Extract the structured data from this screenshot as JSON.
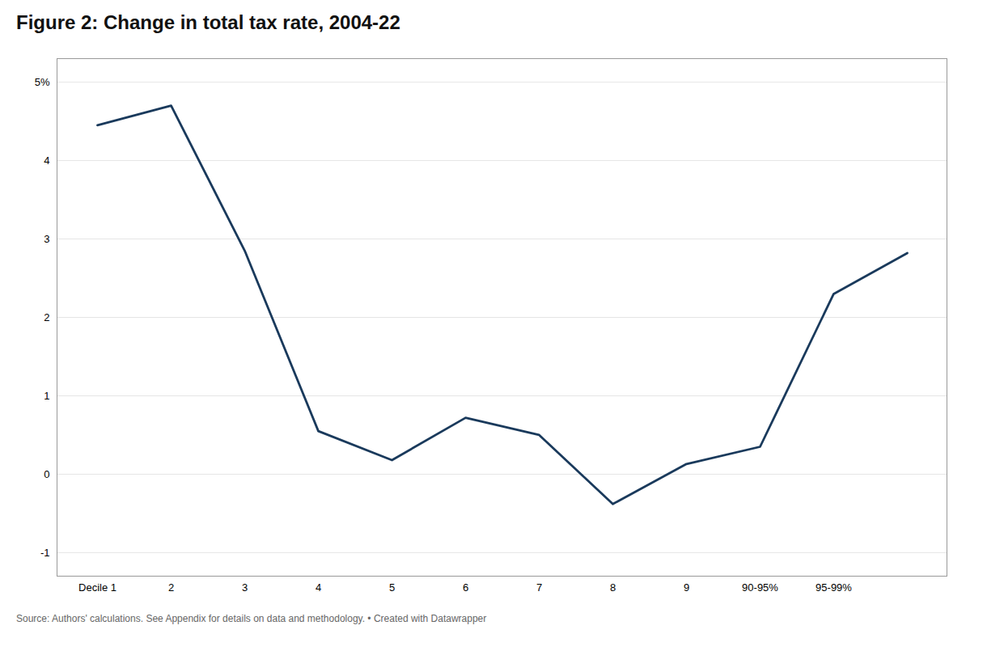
{
  "chart_data": {
    "type": "line",
    "title": "Figure 2: Change in total tax rate, 2004-22",
    "caption": "Source: Authors' calculations. See Appendix for details on data and methodology. • Created with Datawrapper",
    "categories": [
      "Decile 1",
      "2",
      "3",
      "4",
      "5",
      "6",
      "7",
      "8",
      "9",
      "90-95%",
      "95-99%",
      null
    ],
    "values": [
      4.45,
      4.7,
      2.85,
      0.55,
      0.18,
      0.72,
      0.5,
      -0.38,
      0.13,
      0.35,
      2.3,
      2.82
    ],
    "color": "#1a3a5c",
    "ylim": [
      -1.3,
      5.3
    ],
    "yticks": [
      -1,
      0,
      1,
      2,
      3,
      4,
      {
        "value": 5,
        "label": "5%"
      }
    ],
    "grid": true
  }
}
